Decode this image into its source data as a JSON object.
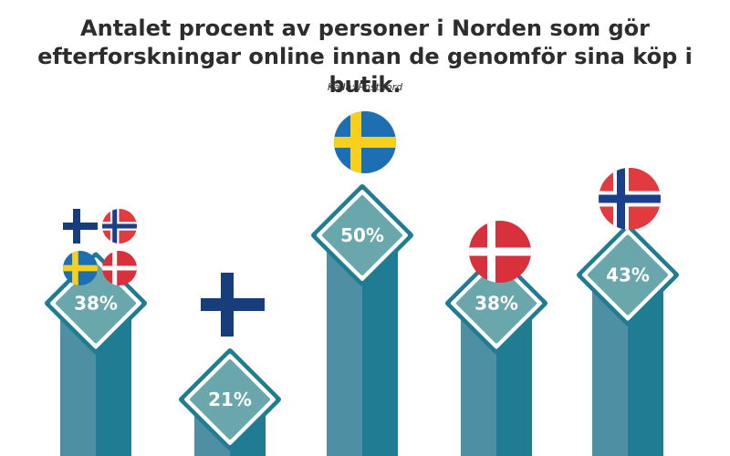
{
  "title_line1": "Antalet procent av personer i Norden som gör",
  "title_line2": "efterforskningar online innan de genomför sina köp i butik.",
  "source": "Källa: Postnord",
  "colors": {
    "bar_left": "#4e8fa3",
    "bar_right": "#1f7c92",
    "diamond_fill": "#6aa7ad",
    "diamond_border": "#1f7c92"
  },
  "chart_data": {
    "type": "bar",
    "categories": [
      "Norden",
      "Finland",
      "Sverige",
      "Danmark",
      "Norge"
    ],
    "values": [
      38,
      21,
      50,
      38,
      43
    ],
    "value_labels": [
      "38%",
      "21%",
      "50%",
      "38%",
      "43%"
    ],
    "unit": "%",
    "ylim": [
      0,
      50
    ],
    "grid": false,
    "legend": "none",
    "category_icons": [
      "nordic-flags-icon",
      "finland-flag-icon",
      "sweden-flag-icon",
      "denmark-flag-icon",
      "norway-flag-icon"
    ]
  }
}
